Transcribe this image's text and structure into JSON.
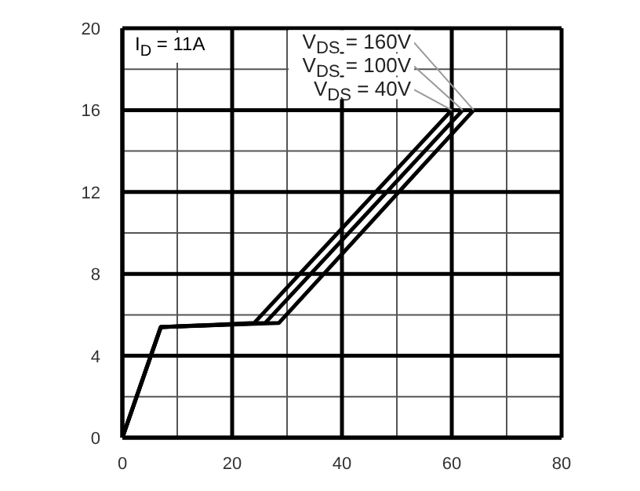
{
  "chart_data": {
    "type": "line",
    "annotations": [
      "I$_{D}$ = 11A"
    ],
    "xlim": [
      0,
      80
    ],
    "xticks": [
      0,
      {
        "value": 10,
        "label": null
      },
      20,
      {
        "value": 30,
        "label": null
      },
      40,
      {
        "value": 50,
        "label": null
      },
      60,
      {
        "value": 70,
        "label": null
      },
      80
    ],
    "ylim": [
      0,
      20
    ],
    "yticks": [
      0,
      {
        "value": 2,
        "label": null
      },
      4,
      {
        "value": 6,
        "label": null
      },
      8,
      {
        "value": 10,
        "label": null
      },
      12,
      {
        "value": 14,
        "label": null
      },
      16,
      {
        "value": 18,
        "label": null
      },
      20
    ],
    "grid": true,
    "legend": false,
    "marker": "none",
    "line_style": "solid",
    "series": [
      {
        "name": "V$_{DS}$= 40V",
        "color": "#000000",
        "x": [
          0,
          7,
          24,
          60
        ],
        "values": [
          0,
          5.4,
          5.6,
          16
        ]
      },
      {
        "name": "V$_{DS}$= 100V",
        "color": "#000000",
        "x": [
          0,
          7,
          26,
          62
        ],
        "values": [
          0,
          5.4,
          5.6,
          16
        ]
      },
      {
        "name": "V$_{DS}$= 160V",
        "color": "#000000",
        "x": [
          0,
          7,
          28.5,
          64
        ],
        "values": [
          0,
          5.4,
          5.6,
          16
        ]
      }
    ]
  }
}
